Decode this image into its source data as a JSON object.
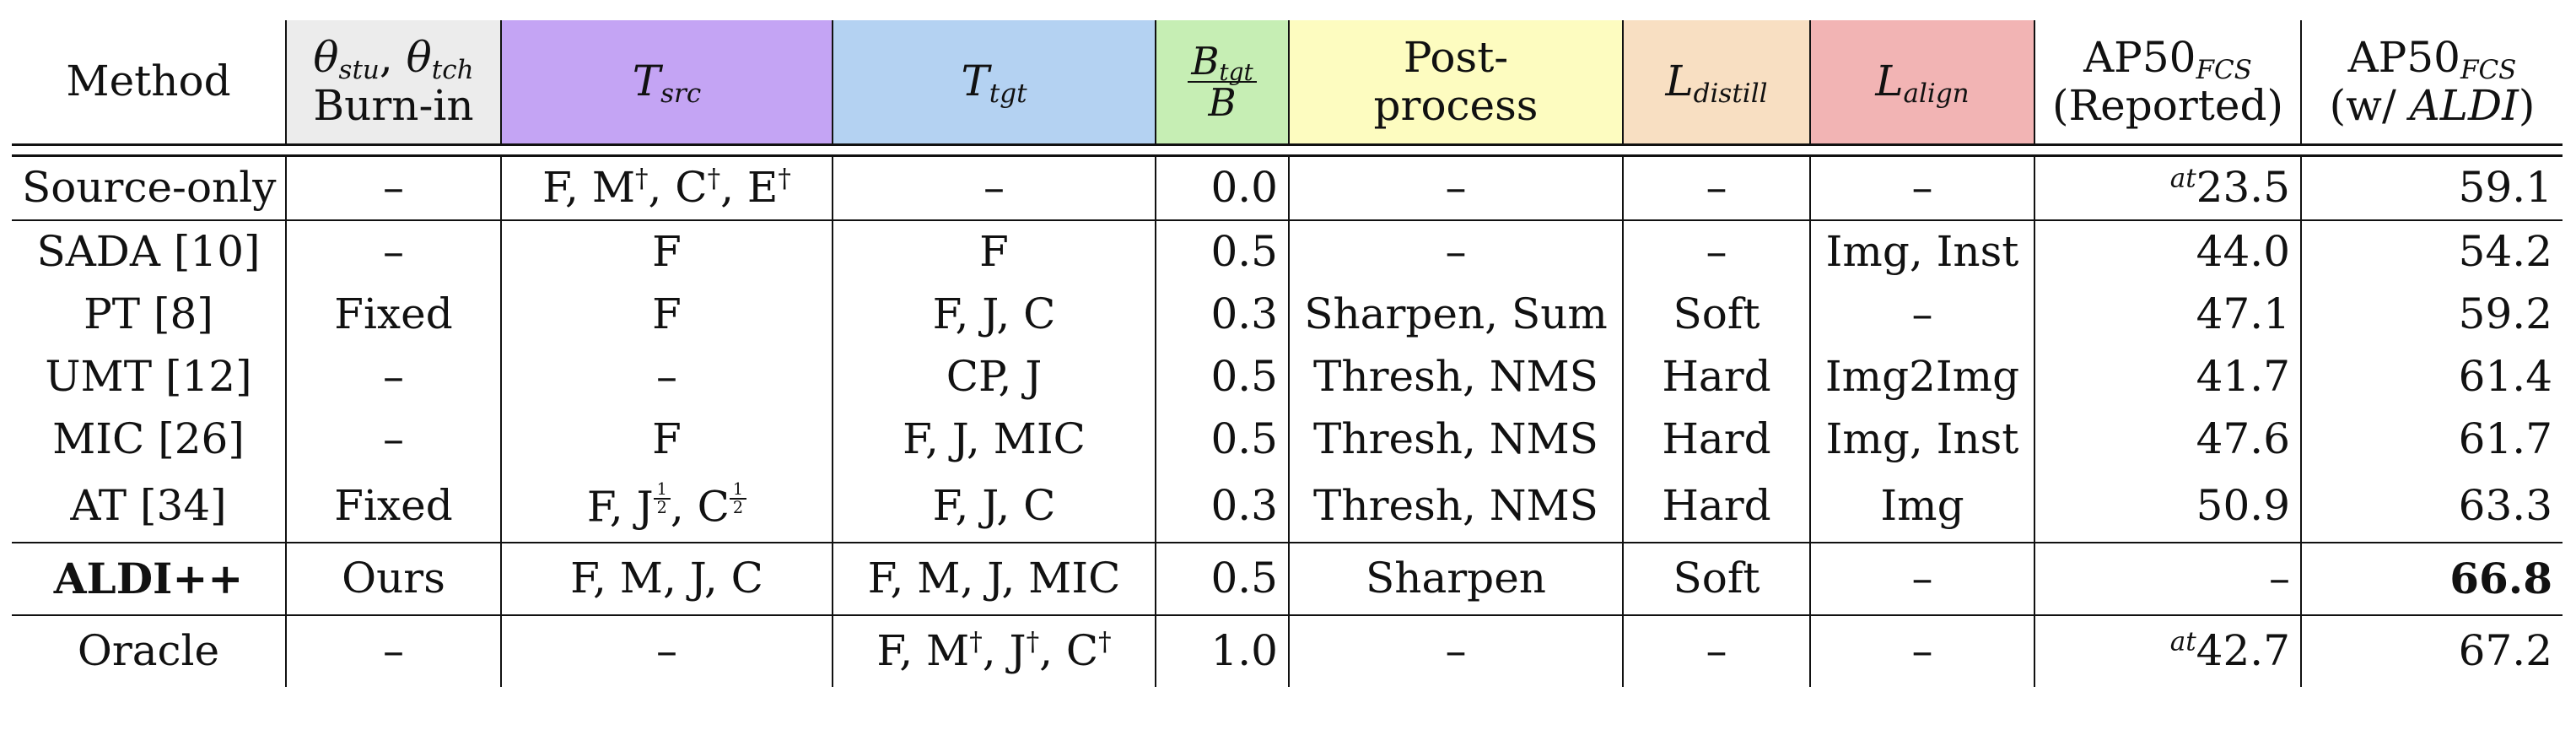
{
  "header": {
    "method": "Method",
    "burnin_theta": "θ",
    "burnin_stu": "stu",
    "burnin_comma": ", ",
    "burnin_tch": "tch",
    "burnin_label": "Burn-in",
    "tsrc_T": "T",
    "tsrc_sub": "src",
    "ttgt_T": "T",
    "ttgt_sub": "tgt",
    "b_num_B": "B",
    "b_num_sub": "tgt",
    "b_den": "B",
    "post_line1": "Post-",
    "post_line2": "process",
    "ldist_L": "L",
    "ldist_sub": "distill",
    "lalign_L": "L",
    "lalign_sub": "align",
    "ap_rep_main": "AP50",
    "ap_rep_sub": "FCS",
    "ap_rep_line2": "(Reported)",
    "ap_aldi_main": "AP50",
    "ap_aldi_sub": "FCS",
    "ap_aldi_line2_pre": "(w/ ",
    "ap_aldi_line2_it": "ALDI",
    "ap_aldi_line2_post": ")"
  },
  "dagger": "†",
  "source_only": {
    "method": "Source-only",
    "burnin": "–",
    "tsrc_pre": "F, M",
    "tsrc_c": ", C",
    "tsrc_e": ", E",
    "ttgt": "–",
    "b": "0.0",
    "post": "–",
    "ldist": "–",
    "lalign": "–",
    "ap_rep_sup": "at",
    "ap_rep": "23.5",
    "ap_aldi": "59.1"
  },
  "rows": [
    {
      "method": "SADA",
      "cite": "[10]",
      "burnin": "–",
      "tsrc": "F",
      "ttgt": "F",
      "b": "0.5",
      "post": "–",
      "ldist": "–",
      "lalign": "Img, Inst",
      "ap_rep": "44.0",
      "ap_aldi": "54.2"
    },
    {
      "method": "PT",
      "cite": "[8]",
      "burnin": "Fixed",
      "tsrc": "F",
      "ttgt": "F, J, C",
      "b": "0.3",
      "post": "Sharpen, Sum",
      "ldist": "Soft",
      "lalign": "–",
      "ap_rep": "47.1",
      "ap_aldi": "59.2"
    },
    {
      "method": "UMT",
      "cite": "[12]",
      "burnin": "–",
      "tsrc": "–",
      "ttgt": "CP, J",
      "b": "0.5",
      "post": "Thresh, NMS",
      "ldist": "Hard",
      "lalign": "Img2Img",
      "ap_rep": "41.7",
      "ap_aldi": "61.4"
    },
    {
      "method": "MIC",
      "cite": "[26]",
      "burnin": "–",
      "tsrc": "F",
      "ttgt": "F, J, MIC",
      "b": "0.5",
      "post": "Thresh, NMS",
      "ldist": "Hard",
      "lalign": "Img, Inst",
      "ap_rep": "47.6",
      "ap_aldi": "61.7"
    },
    {
      "method": "AT",
      "cite": "[34]",
      "burnin": "Fixed",
      "tsrc": "",
      "ttgt": "F, J, C",
      "b": "0.3",
      "post": "Thresh, NMS",
      "ldist": "Hard",
      "lalign": "Img",
      "ap_rep": "50.9",
      "ap_aldi": "63.3"
    }
  ],
  "at_tsrc": {
    "part1": "F, J",
    "part2": ", C",
    "frac_num": "1",
    "frac_den": "2"
  },
  "aldi": {
    "method": "ALDI++",
    "burnin": "Ours",
    "tsrc": "F, M, J, C",
    "ttgt": "F, M, J, MIC",
    "b": "0.5",
    "post": "Sharpen",
    "ldist": "Soft",
    "lalign": "–",
    "ap_rep": "–",
    "ap_aldi": "66.8"
  },
  "oracle": {
    "method": "Oracle",
    "burnin": "–",
    "tsrc": "–",
    "ttgt_pre": "F, M",
    "ttgt_j": ", J",
    "ttgt_c": ", C",
    "b": "1.0",
    "post": "–",
    "ldist": "–",
    "lalign": "–",
    "ap_rep_sup": "at",
    "ap_rep": "42.7",
    "ap_aldi": "67.2"
  }
}
